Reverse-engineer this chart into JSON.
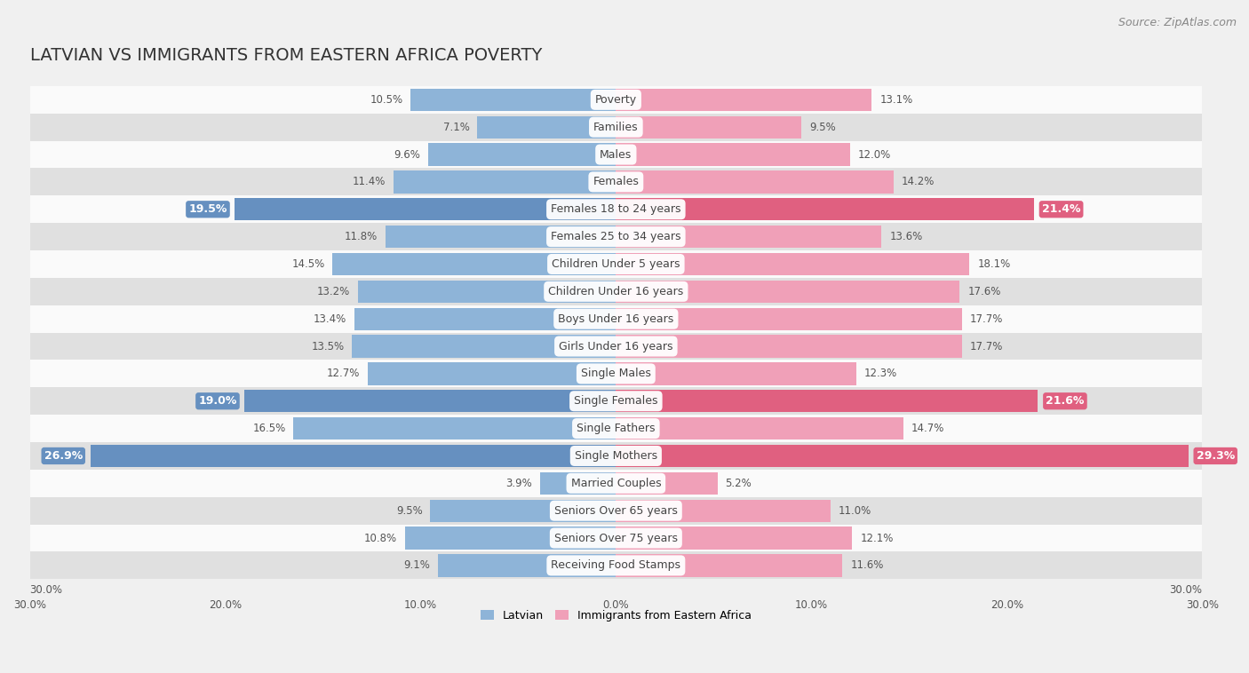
{
  "title": "LATVIAN VS IMMIGRANTS FROM EASTERN AFRICA POVERTY",
  "source": "Source: ZipAtlas.com",
  "categories": [
    "Poverty",
    "Families",
    "Males",
    "Females",
    "Females 18 to 24 years",
    "Females 25 to 34 years",
    "Children Under 5 years",
    "Children Under 16 years",
    "Boys Under 16 years",
    "Girls Under 16 years",
    "Single Males",
    "Single Females",
    "Single Fathers",
    "Single Mothers",
    "Married Couples",
    "Seniors Over 65 years",
    "Seniors Over 75 years",
    "Receiving Food Stamps"
  ],
  "latvian": [
    10.5,
    7.1,
    9.6,
    11.4,
    19.5,
    11.8,
    14.5,
    13.2,
    13.4,
    13.5,
    12.7,
    19.0,
    16.5,
    26.9,
    3.9,
    9.5,
    10.8,
    9.1
  ],
  "immigrants": [
    13.1,
    9.5,
    12.0,
    14.2,
    21.4,
    13.6,
    18.1,
    17.6,
    17.7,
    17.7,
    12.3,
    21.6,
    14.7,
    29.3,
    5.2,
    11.0,
    12.1,
    11.6
  ],
  "latvian_color": "#8eb4d8",
  "immigrant_color": "#f0a0b8",
  "latvian_highlight_color": "#6690c0",
  "immigrant_highlight_color": "#e06080",
  "highlight_rows": [
    4,
    11,
    13
  ],
  "background_color": "#f0f0f0",
  "row_bg_light": "#fafafa",
  "row_bg_dark": "#e0e0e0",
  "axis_limit": 30.0,
  "legend_latvian": "Latvian",
  "legend_immigrants": "Immigrants from Eastern Africa",
  "title_fontsize": 14,
  "source_fontsize": 9,
  "label_fontsize": 9,
  "value_fontsize": 8.5,
  "value_highlight_fontsize": 9
}
